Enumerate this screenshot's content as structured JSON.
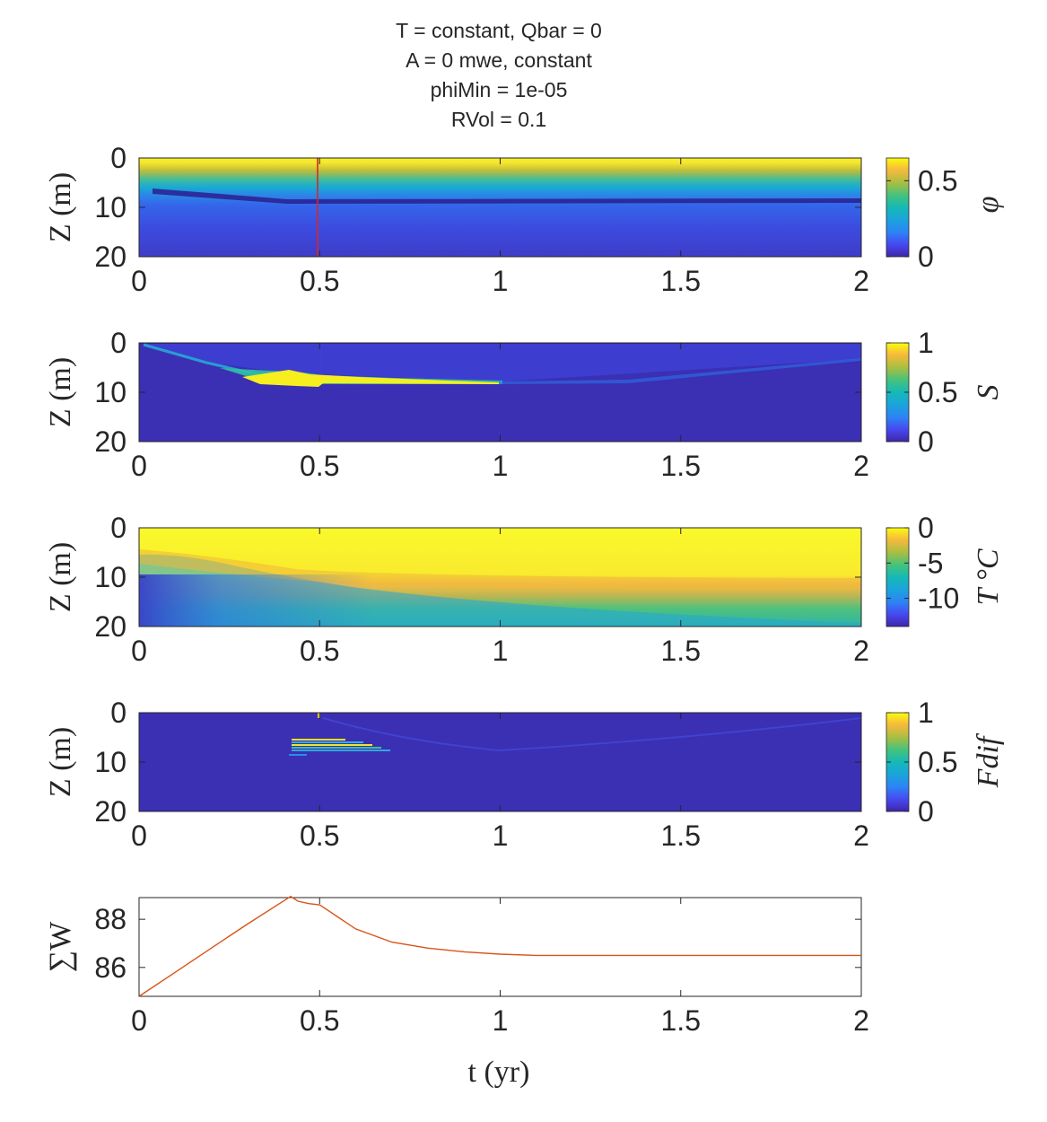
{
  "figure": {
    "title_lines": [
      "T = constant, Qbar = 0",
      "A = 0 mwe, constant",
      "phiMin = 1e-05",
      "RVol = 0.1"
    ]
  },
  "chart_data": [
    {
      "type": "heatmap",
      "panel": "phi",
      "ylabel": "Z (m)",
      "x_range": [
        0,
        2
      ],
      "y_range": [
        0,
        20
      ],
      "y_reversed": true,
      "x_ticks": [
        "0",
        "0.5",
        "1",
        "1.5",
        "2"
      ],
      "y_ticks": [
        "0",
        "10",
        "20"
      ],
      "colorbar_label": "φ",
      "colorbar_ticks": [
        "0",
        "0.5"
      ],
      "colorbar_range": [
        0,
        0.65
      ],
      "colormap": "parula",
      "annotation": "vertical red marker at t = 0.5",
      "marker_color": "#d62728"
    },
    {
      "type": "heatmap",
      "panel": "S",
      "ylabel": "Z (m)",
      "x_range": [
        0,
        2
      ],
      "y_range": [
        0,
        20
      ],
      "y_reversed": true,
      "x_ticks": [
        "0",
        "0.5",
        "1",
        "1.5",
        "2"
      ],
      "y_ticks": [
        "0",
        "10",
        "20"
      ],
      "colorbar_label": "S",
      "colorbar_ticks": [
        "0",
        "0.5",
        "1"
      ],
      "colorbar_range": [
        0,
        1
      ],
      "colormap": "parula"
    },
    {
      "type": "heatmap",
      "panel": "T",
      "ylabel": "Z (m)",
      "x_range": [
        0,
        2
      ],
      "y_range": [
        0,
        20
      ],
      "y_reversed": true,
      "x_ticks": [
        "0",
        "0.5",
        "1",
        "1.5",
        "2"
      ],
      "y_ticks": [
        "0",
        "10",
        "20"
      ],
      "colorbar_label": "T °C",
      "colorbar_ticks": [
        "0",
        "-5",
        "-10"
      ],
      "colorbar_range": [
        -14,
        0
      ],
      "colormap": "parula"
    },
    {
      "type": "heatmap",
      "panel": "Fdif",
      "ylabel": "Z (m)",
      "x_range": [
        0,
        2
      ],
      "y_range": [
        0,
        20
      ],
      "y_reversed": true,
      "x_ticks": [
        "0",
        "0.5",
        "1",
        "1.5",
        "2"
      ],
      "y_ticks": [
        "0",
        "10",
        "20"
      ],
      "colorbar_label": "Fdif",
      "colorbar_ticks": [
        "0",
        "0.5",
        "1"
      ],
      "colorbar_range": [
        0,
        1
      ],
      "colormap": "parula"
    },
    {
      "type": "line",
      "panel": "sumW",
      "ylabel": "∑W",
      "xlabel": "t (yr)",
      "x_range": [
        0,
        2
      ],
      "y_range": [
        84.8,
        88.9
      ],
      "x_ticks": [
        "0",
        "0.5",
        "1",
        "1.5",
        "2"
      ],
      "y_ticks": [
        "86",
        "88"
      ],
      "line_color": "#d95319",
      "series": [
        {
          "x": [
            0,
            0.1,
            0.2,
            0.3,
            0.42,
            0.44,
            0.47,
            0.5,
            0.55,
            0.6,
            0.7,
            0.8,
            0.9,
            1.0,
            1.1,
            1.3,
            1.6,
            2.0
          ],
          "y": [
            84.8,
            85.8,
            86.8,
            87.8,
            88.95,
            88.75,
            88.65,
            88.6,
            88.1,
            87.6,
            87.05,
            86.8,
            86.65,
            86.55,
            86.5,
            86.5,
            86.5,
            86.5
          ]
        }
      ]
    }
  ]
}
